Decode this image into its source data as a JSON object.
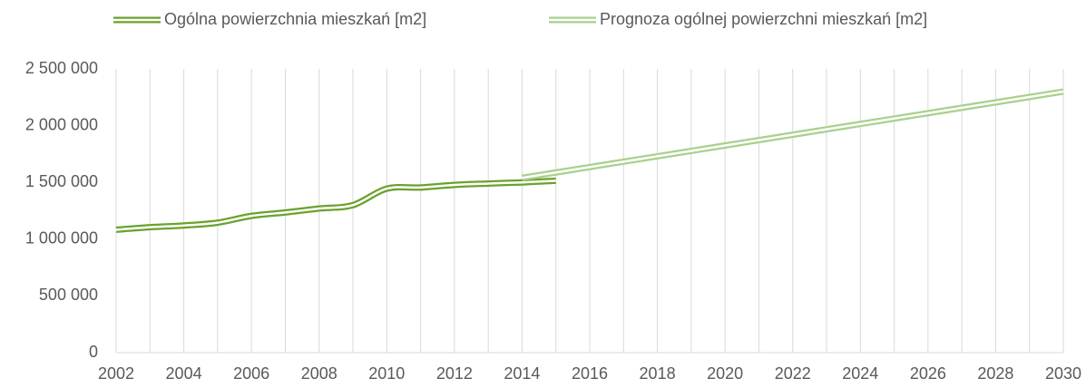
{
  "chart_data": {
    "type": "line",
    "x": [
      2002,
      2003,
      2004,
      2005,
      2006,
      2007,
      2008,
      2009,
      2010,
      2011,
      2012,
      2013,
      2014,
      2015,
      2016,
      2017,
      2018,
      2019,
      2020,
      2021,
      2022,
      2023,
      2024,
      2025,
      2026,
      2027,
      2028,
      2029,
      2030
    ],
    "series": [
      {
        "name": "Ogólna powierzchnia mieszkań [m2]",
        "color": "#6aa22c",
        "values": [
          1083000,
          1105000,
          1120000,
          1145000,
          1205000,
          1235000,
          1270000,
          1300000,
          1445000,
          1455000,
          1478000,
          1490000,
          1500000,
          1515000,
          null,
          null,
          null,
          null,
          null,
          null,
          null,
          null,
          null,
          null,
          null,
          null,
          null,
          null,
          null
        ]
      },
      {
        "name": "Prognoza ogólnej powierzchni mieszkań [m2]",
        "color": "#a9d08e",
        "values": [
          null,
          null,
          null,
          null,
          null,
          null,
          null,
          null,
          null,
          null,
          null,
          null,
          1540000,
          1587500,
          1635000,
          1682500,
          1730000,
          1777500,
          1825000,
          1872500,
          1920000,
          1967500,
          2015000,
          2062500,
          2110000,
          2157500,
          2205000,
          2252500,
          2300000
        ]
      }
    ],
    "xlim": [
      2002,
      2030
    ],
    "xticks": [
      2002,
      2004,
      2006,
      2008,
      2010,
      2012,
      2014,
      2016,
      2018,
      2020,
      2022,
      2024,
      2026,
      2028,
      2030
    ],
    "ylim": [
      0,
      2500000
    ],
    "yticks": [
      0,
      {
        "value": 500000,
        "label": "500 000"
      },
      {
        "value": 1000000,
        "label": "1 000 000"
      },
      {
        "value": 1500000,
        "label": "1 500 000"
      },
      {
        "value": 2000000,
        "label": "2 000 000"
      },
      {
        "value": 2500000,
        "label": "2 500 000"
      }
    ],
    "grid": true,
    "legend": "top"
  }
}
